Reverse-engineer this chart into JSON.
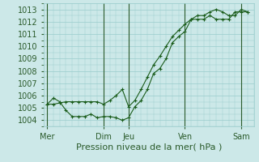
{
  "background_color": "#cce8e8",
  "grid_color": "#99cccc",
  "line_color": "#1a5c1a",
  "marker_color": "#1a5c1a",
  "xlabel": "Pression niveau de la mer( hPa )",
  "ylim": [
    1003.5,
    1013.5
  ],
  "yticks": [
    1004,
    1005,
    1006,
    1007,
    1008,
    1009,
    1010,
    1011,
    1012,
    1013
  ],
  "day_labels": [
    "Mer",
    "Dim",
    "Jeu",
    "Ven",
    "Sam"
  ],
  "day_positions": [
    0,
    9,
    13,
    22,
    31
  ],
  "xlim": [
    -0.5,
    33
  ],
  "series1_x": [
    0,
    1,
    2,
    3,
    4,
    5,
    6,
    7,
    8,
    9,
    10,
    11,
    12,
    13,
    14,
    15,
    16,
    17,
    18,
    19,
    20,
    21,
    22,
    23,
    24,
    25,
    26,
    27,
    28,
    29,
    30,
    31,
    32
  ],
  "series1_y": [
    1005.3,
    1005.3,
    1005.4,
    1005.5,
    1005.5,
    1005.5,
    1005.5,
    1005.5,
    1005.5,
    1005.3,
    1005.6,
    1006.0,
    1006.5,
    1005.1,
    1005.6,
    1006.5,
    1007.5,
    1008.5,
    1009.2,
    1010.0,
    1010.8,
    1011.3,
    1011.8,
    1012.2,
    1012.5,
    1012.5,
    1012.8,
    1013.0,
    1012.8,
    1012.5,
    1012.5,
    1013.0,
    1012.8
  ],
  "series2_x": [
    0,
    1,
    2,
    3,
    4,
    5,
    6,
    7,
    8,
    9,
    10,
    11,
    12,
    13,
    14,
    15,
    16,
    17,
    18,
    19,
    20,
    21,
    22,
    23,
    24,
    25,
    26,
    27,
    28,
    29,
    30,
    31,
    32
  ],
  "series2_y": [
    1005.3,
    1005.8,
    1005.5,
    1004.8,
    1004.3,
    1004.3,
    1004.3,
    1004.5,
    1004.2,
    1004.3,
    1004.3,
    1004.2,
    1004.0,
    1004.2,
    1005.1,
    1005.6,
    1006.5,
    1007.8,
    1008.2,
    1009.0,
    1010.3,
    1010.8,
    1011.2,
    1012.2,
    1012.2,
    1012.2,
    1012.5,
    1012.2,
    1012.2,
    1012.2,
    1012.8,
    1012.8,
    1012.8
  ],
  "font_color": "#2a5a2a",
  "font_size": 7,
  "xlabel_font_size": 8
}
